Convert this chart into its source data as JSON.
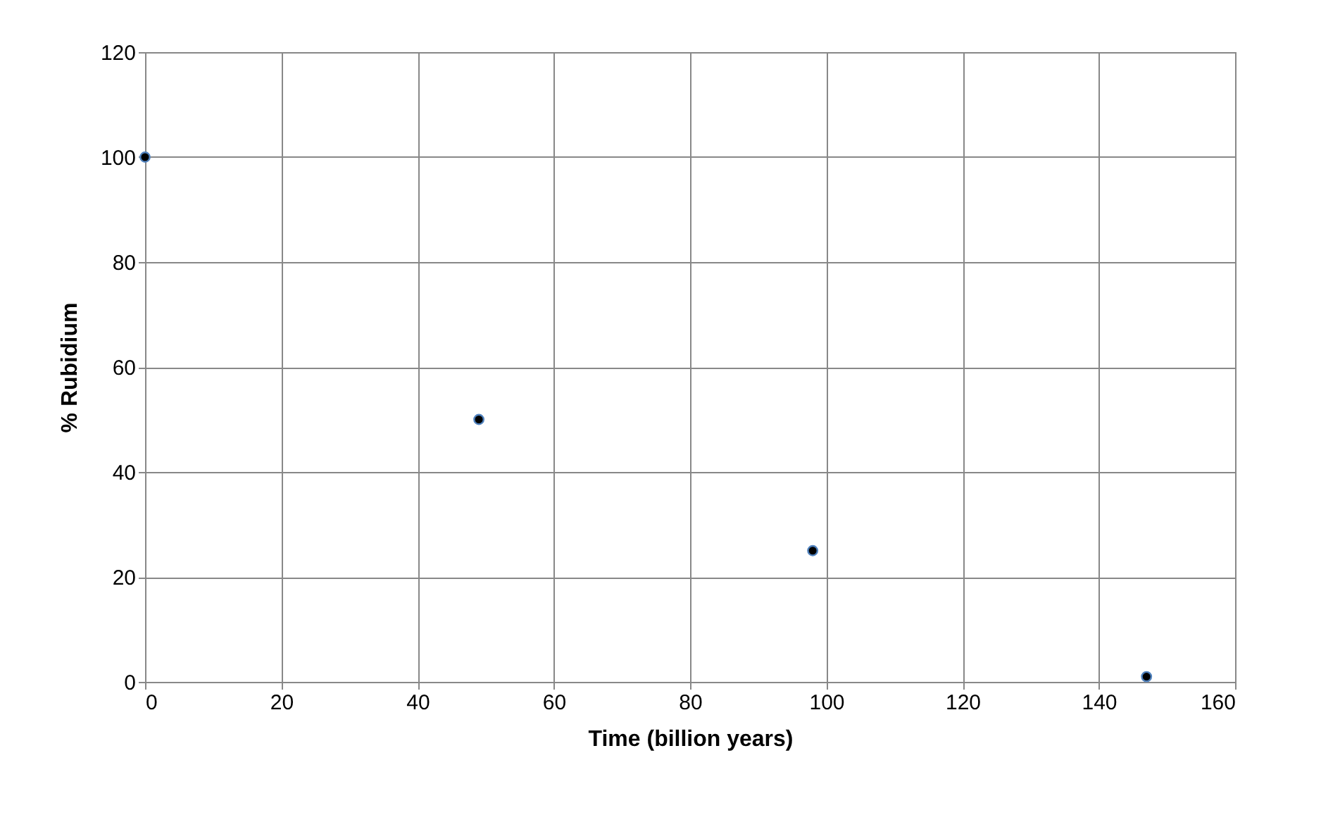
{
  "chart_data": {
    "type": "scatter",
    "xlabel": "Time (billion years)",
    "ylabel": "% Rubidium",
    "x": [
      0,
      49,
      98,
      147
    ],
    "series": [
      {
        "color": "#000000",
        "values": [
          100,
          50,
          25,
          1
        ]
      }
    ],
    "xlim": [
      0,
      160
    ],
    "xticks": [
      0,
      20,
      40,
      60,
      80,
      100,
      120,
      140,
      160
    ],
    "ylim": [
      0,
      120
    ],
    "yticks": [
      0,
      20,
      40,
      60,
      80,
      100,
      120
    ],
    "grid": true,
    "marker": "circle"
  }
}
